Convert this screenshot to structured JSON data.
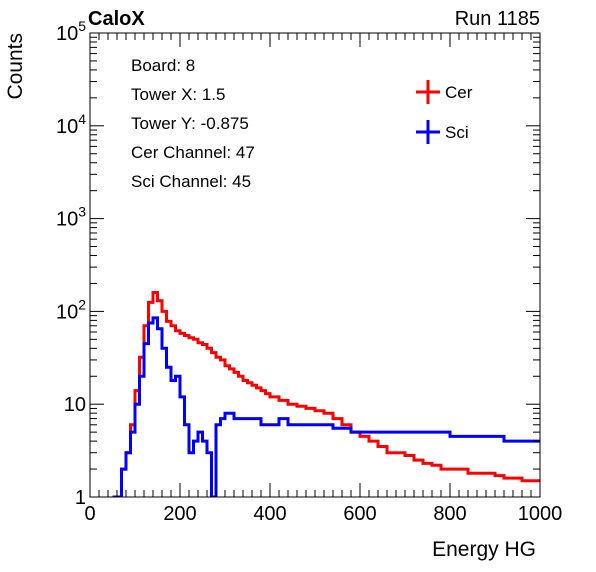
{
  "header": {
    "left_label": "CaloX",
    "right_label": "Run 1185"
  },
  "info_box": {
    "lines": [
      "Board: 8",
      "Tower X: 1.5",
      "Tower Y: -0.875",
      "Cer Channel: 47",
      "Sci Channel: 45"
    ]
  },
  "colors": {
    "cer": "#ff0000",
    "sci": "#0000ff"
  },
  "chart_data": {
    "type": "line",
    "histogram_style": "step",
    "title": "",
    "xlabel": "Energy HG",
    "ylabel": "Counts",
    "xlim": [
      0,
      1000
    ],
    "ylim": [
      1,
      100000
    ],
    "y_scale": "log",
    "grid": false,
    "legend_placement": "top-right",
    "x_ticks": [
      0,
      200,
      400,
      600,
      800,
      1000
    ],
    "x_tick_labels": [
      "0",
      "200",
      "400",
      "600",
      "800",
      "1000"
    ],
    "y_tick_labels": [
      {
        "value": 1,
        "label": "1"
      },
      {
        "value": 10,
        "label": "10"
      },
      {
        "value": 100,
        "label": "10",
        "sup": "2"
      },
      {
        "value": 1000,
        "label": "10",
        "sup": "3"
      },
      {
        "value": 10000,
        "label": "10",
        "sup": "4"
      },
      {
        "value": 100000,
        "label": "10",
        "sup": "5"
      }
    ],
    "series": [
      {
        "name": "Cer",
        "color": "#ff0000",
        "x": [
          50,
          60,
          70,
          80,
          90,
          100,
          110,
          120,
          130,
          140,
          150,
          160,
          170,
          180,
          190,
          200,
          210,
          220,
          230,
          240,
          250,
          260,
          270,
          280,
          290,
          300,
          310,
          320,
          330,
          340,
          350,
          360,
          370,
          380,
          390,
          400,
          420,
          440,
          460,
          480,
          500,
          520,
          540,
          560,
          580,
          600,
          620,
          640,
          660,
          680,
          700,
          720,
          740,
          760,
          780,
          800,
          820,
          840,
          860,
          880,
          900,
          920,
          940,
          960,
          980,
          1000
        ],
        "values": [
          1,
          1,
          2,
          3,
          6,
          14,
          32,
          70,
          125,
          160,
          130,
          100,
          78,
          70,
          62,
          58,
          55,
          52,
          50,
          46,
          44,
          40,
          36,
          32,
          30,
          26,
          24,
          22,
          20,
          18,
          17,
          16,
          15,
          14,
          13,
          12,
          11,
          10,
          9.5,
          9,
          8.5,
          8,
          7,
          6,
          5,
          4.5,
          4,
          3.5,
          3,
          3,
          2.8,
          2.5,
          2.3,
          2.2,
          2,
          2,
          2,
          1.8,
          1.8,
          1.8,
          1.7,
          1.6,
          1.6,
          1.5,
          1.5,
          1.5
        ]
      },
      {
        "name": "Sci",
        "color": "#0000ff",
        "x": [
          50,
          60,
          70,
          80,
          90,
          100,
          110,
          120,
          130,
          140,
          150,
          160,
          170,
          180,
          190,
          200,
          210,
          220,
          230,
          240,
          250,
          260,
          270,
          280,
          290,
          300,
          320,
          340,
          360,
          380,
          400,
          420,
          440,
          460,
          480,
          500,
          520,
          540,
          560,
          580,
          600,
          620,
          640,
          660,
          680,
          700,
          720,
          740,
          760,
          780,
          800,
          820,
          840,
          860,
          880,
          900,
          920,
          940,
          960,
          980,
          1000
        ],
        "values": [
          1,
          1,
          2,
          3,
          5,
          10,
          20,
          45,
          75,
          85,
          65,
          40,
          25,
          18,
          20,
          12,
          6,
          3,
          4,
          5,
          4,
          3,
          1,
          6,
          7,
          8,
          7,
          7,
          7,
          6,
          6,
          7,
          6,
          6,
          6,
          6,
          6,
          5.5,
          5.5,
          5,
          5,
          5,
          5,
          5,
          5,
          5,
          5,
          5,
          5,
          5,
          4.5,
          4.5,
          4.5,
          4.5,
          4.5,
          4.5,
          4,
          4,
          4,
          4,
          4
        ]
      }
    ]
  }
}
